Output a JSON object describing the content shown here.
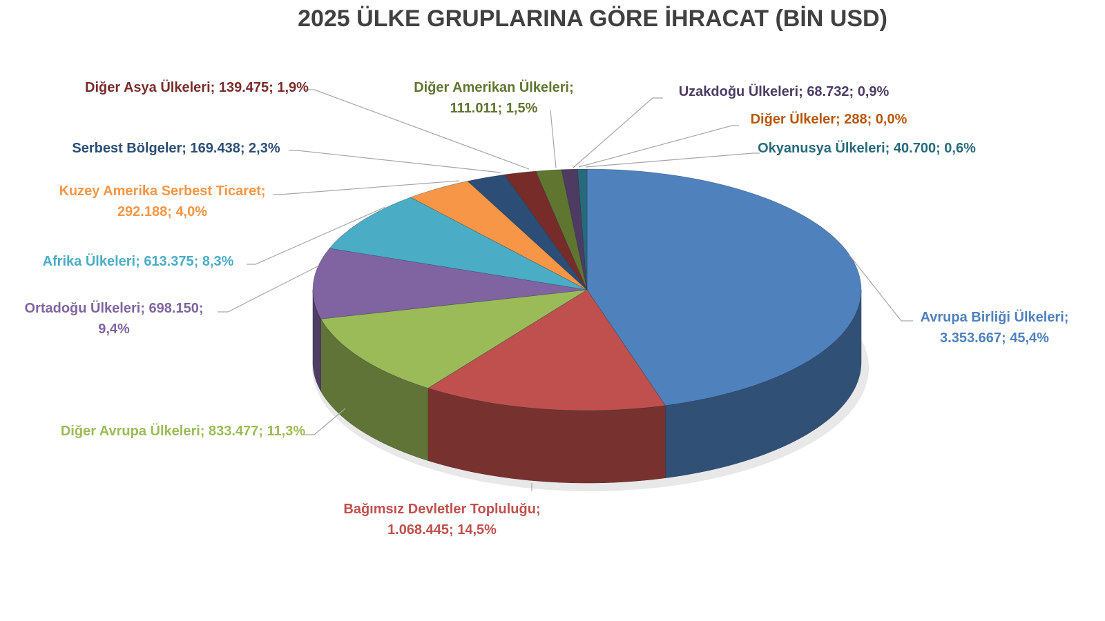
{
  "chart_data": {
    "type": "pie",
    "style": "3d",
    "title": "2025 ÜLKE GRUPLARINA GÖRE İHRACAT (BİN USD)",
    "legend": "none",
    "slices": [
      {
        "name": "Avrupa Birliği Ülkeleri",
        "value": 3353667,
        "value_label": "3.353.667",
        "percent": "45,4%",
        "color": "#4f81bd",
        "label_color": "#4f81bd"
      },
      {
        "name": "Bağımsız Devletler Topluluğu",
        "value": 1068445,
        "value_label": "1.068.445",
        "percent": "14,5%",
        "color": "#c0504d",
        "label_color": "#c0504d"
      },
      {
        "name": "Diğer Avrupa Ülkeleri",
        "value": 833477,
        "value_label": "833.477",
        "percent": "11,3%",
        "color": "#9bbb59",
        "label_color": "#9bbb59"
      },
      {
        "name": "Ortadoğu Ülkeleri",
        "value": 698150,
        "value_label": "698.150",
        "percent": "9,4%",
        "color": "#8064a2",
        "label_color": "#8064a2"
      },
      {
        "name": "Afrika Ülkeleri",
        "value": 613375,
        "value_label": "613.375",
        "percent": "8,3%",
        "color": "#4bacc6",
        "label_color": "#4bacc6"
      },
      {
        "name": "Kuzey Amerika Serbest Ticaret",
        "value": 292188,
        "value_label": "292.188",
        "percent": "4,0%",
        "color": "#f79646",
        "label_color": "#f79646"
      },
      {
        "name": "Serbest Bölgeler",
        "value": 169438,
        "value_label": "169.438",
        "percent": "2,3%",
        "color": "#2c4d75",
        "label_color": "#2c4d75"
      },
      {
        "name": "Diğer Asya Ülkeleri",
        "value": 139475,
        "value_label": "139.475",
        "percent": "1,9%",
        "color": "#772c2a",
        "label_color": "#772c2a"
      },
      {
        "name": "Diğer Amerikan Ülkeleri",
        "value": 111011,
        "value_label": "111.011",
        "percent": "1,5%",
        "color": "#5f7530",
        "label_color": "#5f7530"
      },
      {
        "name": "Uzakdoğu Ülkeleri",
        "value": 68732,
        "value_label": "68.732",
        "percent": "0,9%",
        "color": "#4d3b62",
        "label_color": "#4d3b62"
      },
      {
        "name": "Diğer Ülkeler",
        "value": 288,
        "value_label": "288",
        "percent": "0,0%",
        "color": "#b65708",
        "label_color": "#b65708"
      },
      {
        "name": "Okyanusya Ülkeleri",
        "value": 40700,
        "value_label": "40.700",
        "percent": "0,6%",
        "color": "#276a7c",
        "label_color": "#276a7c"
      }
    ]
  }
}
